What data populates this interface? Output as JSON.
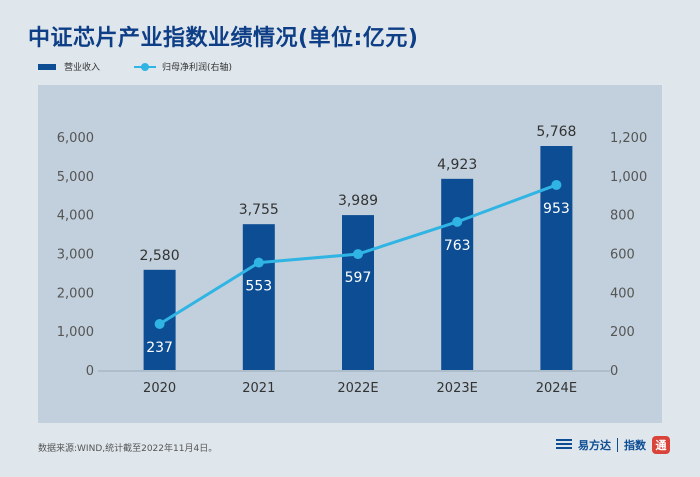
{
  "title": "中证芯片产业指数业绩情况(单位:亿元)",
  "legend": {
    "bar_label": "营业收入",
    "line_label": "归母净利润(右轴)"
  },
  "footnote": "数据来源:WIND,统计截至2022年11月4日。",
  "brand": {
    "company": "易方达",
    "product": "指数",
    "seal": "通"
  },
  "colors": {
    "bar": "#0d4d94",
    "line": "#2fb4e3",
    "title": "#0d3e86",
    "panel": "#c1d0dc"
  },
  "chart_data": {
    "type": "bar",
    "categories": [
      "2020",
      "2021",
      "2022E",
      "2023E",
      "2024E"
    ],
    "series": [
      {
        "name": "营业收入",
        "type": "bar",
        "axis": "left",
        "values": [
          2580,
          3755,
          3989,
          4923,
          5768
        ]
      },
      {
        "name": "归母净利润(右轴)",
        "type": "line",
        "axis": "right",
        "values": [
          237,
          553,
          597,
          763,
          953
        ]
      }
    ],
    "ylim_left": [
      0,
      6000
    ],
    "ylim_right": [
      0,
      1200
    ],
    "yticks_left": [
      "0",
      "1,000",
      "2,000",
      "3,000",
      "4,000",
      "5,000",
      "6,000"
    ],
    "yticks_right": [
      "0",
      "200",
      "400",
      "600",
      "800",
      "1,000",
      "1,200"
    ],
    "bar_labels": [
      "2,580",
      "3,755",
      "3,989",
      "4,923",
      "5,768"
    ],
    "line_labels": [
      "237",
      "553",
      "597",
      "763",
      "953"
    ],
    "grid": false,
    "legend_position": "top-left"
  }
}
